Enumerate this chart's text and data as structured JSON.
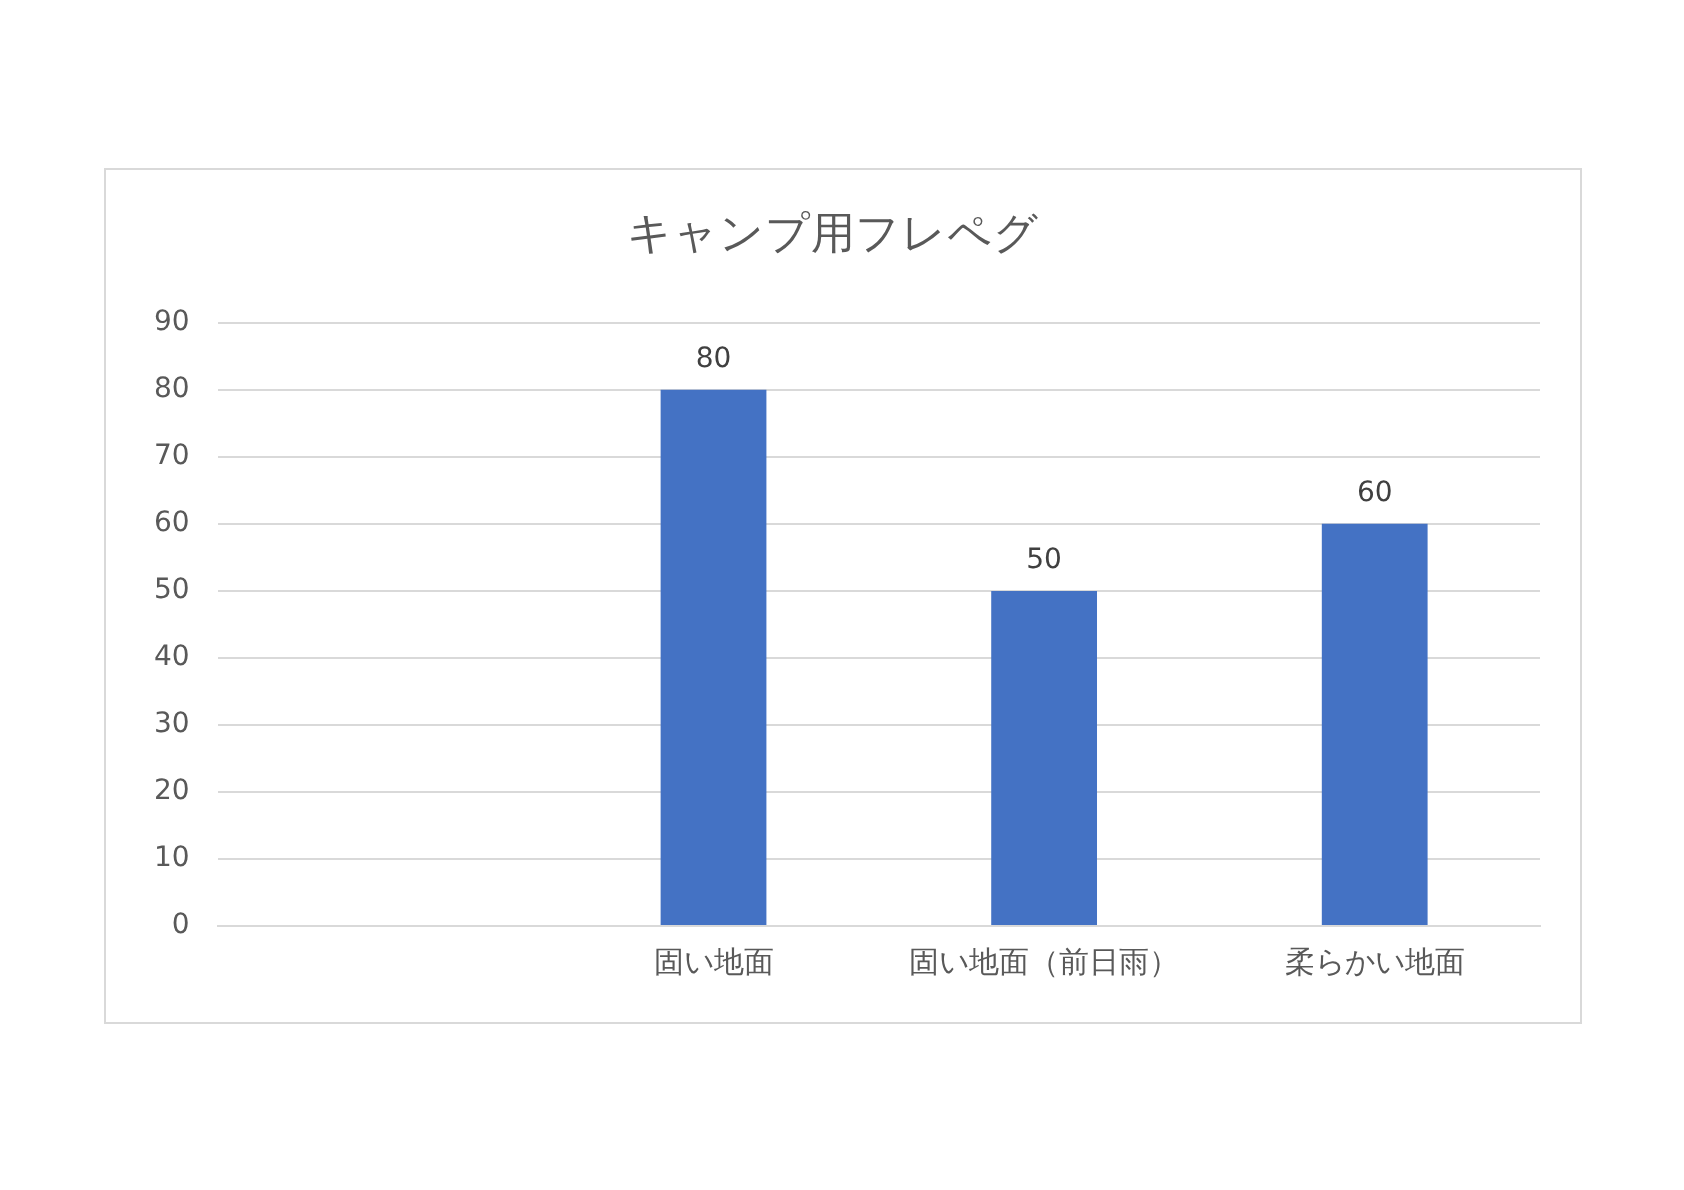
{
  "chart_data": {
    "type": "bar",
    "title": "キャンプ用フレペグ",
    "categories": [
      null,
      "固い地面",
      "固い地面（前日雨）",
      "柔らかい地面"
    ],
    "values": [
      null,
      80,
      50,
      60
    ],
    "color": "#4472c4",
    "ylim": [
      0,
      90
    ],
    "yticks": [
      0,
      10,
      20,
      30,
      40,
      50,
      60,
      70,
      80,
      90
    ],
    "grid": "y",
    "data_labels": true
  }
}
